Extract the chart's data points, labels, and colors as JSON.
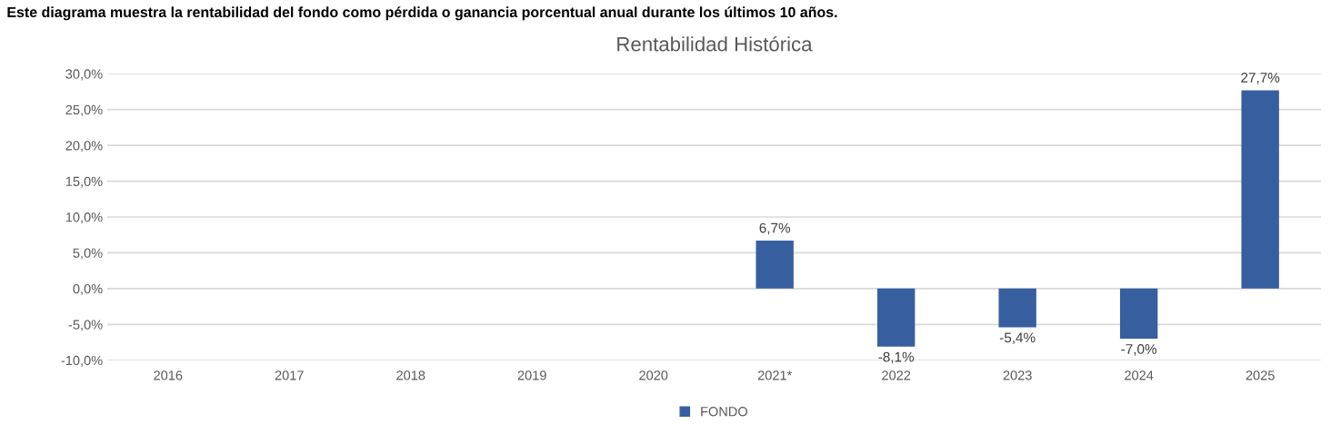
{
  "chart_data": {
    "type": "bar",
    "title": "Rentabilidad Histórica",
    "annotations": [
      "Este diagrama muestra la rentabilidad del fondo como pérdida o ganancia porcentual anual durante los últimos 10 años."
    ],
    "categories": [
      "2016",
      "2017",
      "2018",
      "2019",
      "2020",
      "2021*",
      "2022",
      "2023",
      "2024",
      "2025"
    ],
    "series": [
      {
        "name": "FONDO",
        "color": "#375f9f",
        "values": [
          null,
          null,
          null,
          null,
          null,
          6.7,
          -8.1,
          -5.4,
          -7.0,
          27.7
        ],
        "value_labels": [
          null,
          null,
          null,
          null,
          null,
          "6,7%",
          "-8,1%",
          "-5,4%",
          "-7,0%",
          "27,7%"
        ]
      }
    ],
    "ylim": [
      -10,
      30
    ],
    "yticks": [
      {
        "value": 30,
        "label": "30,0%"
      },
      {
        "value": 25,
        "label": "25,0%"
      },
      {
        "value": 20,
        "label": "20,0%"
      },
      {
        "value": 15,
        "label": "15,0%"
      },
      {
        "value": 10,
        "label": "10,0%"
      },
      {
        "value": 5,
        "label": "5,0%"
      },
      {
        "value": 0,
        "label": "0,0%"
      },
      {
        "value": -5,
        "label": "-5,0%"
      },
      {
        "value": -10,
        "label": "-10,0%"
      }
    ],
    "grid": "y",
    "legend": "bottom"
  }
}
